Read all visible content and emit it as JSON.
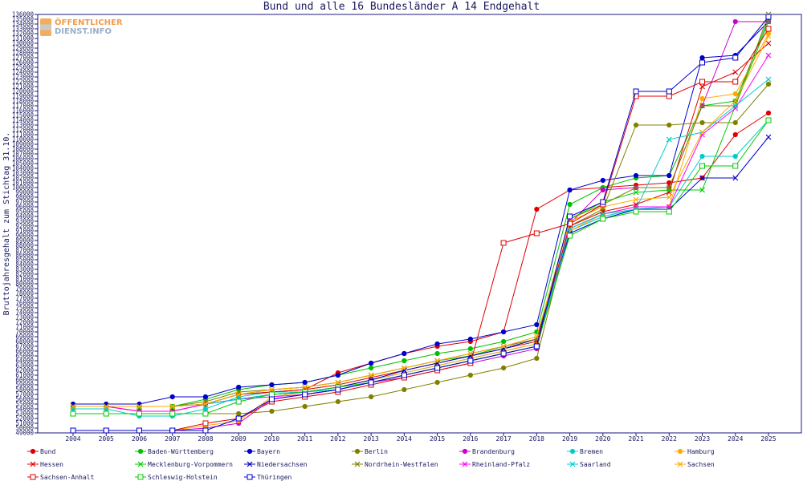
{
  "chart_data": {
    "type": "line",
    "title": "Bund und alle 16 Bundesländer A 14 Endgehalt",
    "ylabel": "Bruttojahresgehalt zum Stichtag 31.10.",
    "xlabel": "",
    "x": [
      2004,
      2005,
      2006,
      2007,
      2008,
      2009,
      2010,
      2011,
      2012,
      2013,
      2014,
      2015,
      2016,
      2017,
      2018,
      2019,
      2020,
      2021,
      2022,
      2023,
      2024,
      2025
    ],
    "ylim": [
      49000,
      136000
    ],
    "ytick_step": 1000,
    "grid": false,
    "legend_position": "bottom",
    "series": [
      {
        "name": "Bund",
        "color": "#e00000",
        "marker": "circle",
        "values": [
          54500,
          54500,
          53500,
          53500,
          55000,
          57000,
          57500,
          58000,
          61500,
          63500,
          65500,
          67000,
          68000,
          70000,
          95500,
          99500,
          100000,
          100500,
          101000,
          102000,
          111000,
          115500
        ]
      },
      {
        "name": "Baden-Württemberg",
        "color": "#00c000",
        "marker": "circle",
        "values": [
          54500,
          54500,
          54500,
          54500,
          56000,
          58000,
          59000,
          59500,
          61000,
          62500,
          64000,
          65500,
          66500,
          68000,
          70000,
          96500,
          100000,
          102000,
          102500,
          117000,
          118000,
          135000
        ]
      },
      {
        "name": "Bayern",
        "color": "#0000cc",
        "marker": "circle",
        "values": [
          55000,
          55000,
          55000,
          56500,
          56500,
          58500,
          59000,
          59500,
          61000,
          63500,
          65500,
          67500,
          68500,
          70000,
          71500,
          99500,
          101500,
          102500,
          102500,
          127000,
          127500,
          134500
        ]
      },
      {
        "name": "Berlin",
        "color": "#808000",
        "marker": "circle",
        "values": [
          53000,
          53000,
          53000,
          53000,
          53000,
          53000,
          53500,
          54500,
          55500,
          56500,
          58000,
          59500,
          61000,
          62500,
          64500,
          92000,
          95500,
          113000,
          113000,
          113500,
          113500,
          121500
        ]
      },
      {
        "name": "Brandenburg",
        "color": "#cc00cc",
        "marker": "circle",
        "values": [
          49500,
          49500,
          49500,
          49500,
          50000,
          51000,
          56000,
          57000,
          58000,
          59500,
          60500,
          62000,
          63500,
          65000,
          66500,
          92500,
          99500,
          100000,
          100000,
          117000,
          134500,
          134500
        ]
      },
      {
        "name": "Bremen",
        "color": "#00cccc",
        "marker": "circle",
        "values": [
          54000,
          54000,
          52500,
          52500,
          54000,
          56500,
          57500,
          57500,
          58500,
          60000,
          61500,
          63000,
          64500,
          66000,
          67500,
          91000,
          94000,
          95500,
          96000,
          106500,
          106500,
          114000
        ]
      },
      {
        "name": "Hamburg",
        "color": "#ffaa00",
        "marker": "circle",
        "values": [
          49500,
          49500,
          49500,
          49500,
          50500,
          51500,
          56500,
          57500,
          58500,
          60000,
          61500,
          63000,
          64500,
          66000,
          67500,
          91000,
          94500,
          96000,
          96000,
          118500,
          119500,
          132000
        ]
      },
      {
        "name": "Hessen",
        "color": "#e00000",
        "marker": "x",
        "values": [
          54500,
          54500,
          53500,
          53500,
          55000,
          57000,
          57500,
          58000,
          59000,
          60500,
          62000,
          63500,
          65000,
          66500,
          68000,
          92000,
          95000,
          96500,
          99000,
          121000,
          124000,
          130000
        ]
      },
      {
        "name": "Mecklenburg-Vorpommern",
        "color": "#00cc00",
        "marker": "x",
        "values": [
          54500,
          54500,
          54500,
          54500,
          55000,
          57000,
          58000,
          58500,
          59500,
          61000,
          62500,
          64000,
          65000,
          67000,
          68500,
          93500,
          97000,
          99000,
          99500,
          99500,
          117000,
          134500
        ]
      },
      {
        "name": "Niedersachsen",
        "color": "#0000cc",
        "marker": "x",
        "values": [
          54500,
          54500,
          54500,
          54500,
          55000,
          56000,
          57000,
          57500,
          58500,
          60000,
          62000,
          63500,
          65000,
          66500,
          68500,
          90500,
          93500,
          95500,
          95500,
          102000,
          102000,
          110500
        ]
      },
      {
        "name": "Nordrhein-Westfalen",
        "color": "#808000",
        "marker": "x",
        "values": [
          54500,
          54500,
          54500,
          54500,
          55500,
          57500,
          58000,
          58500,
          59500,
          61000,
          62500,
          64000,
          65500,
          67000,
          68500,
          93500,
          96500,
          100000,
          100000,
          117000,
          117000,
          136000
        ]
      },
      {
        "name": "Rheinland-Pfalz",
        "color": "#ff00ff",
        "marker": "x",
        "values": [
          54500,
          54500,
          53500,
          53500,
          55000,
          56000,
          56500,
          57000,
          58000,
          59500,
          61000,
          62500,
          64000,
          65500,
          67000,
          91500,
          94500,
          96000,
          96000,
          111000,
          116500,
          127500
        ]
      },
      {
        "name": "Saarland",
        "color": "#00cccc",
        "marker": "x",
        "values": [
          54500,
          54500,
          54500,
          54500,
          55000,
          56000,
          57000,
          57500,
          58000,
          59500,
          61000,
          62500,
          64000,
          65500,
          67000,
          91500,
          94500,
          95500,
          110000,
          111500,
          117000,
          122500
        ]
      },
      {
        "name": "Sachsen",
        "color": "#ffaa00",
        "marker": "x",
        "values": [
          54500,
          54500,
          54500,
          54500,
          55000,
          57000,
          58000,
          58500,
          59500,
          61000,
          62500,
          64000,
          65500,
          67000,
          69000,
          93000,
          96000,
          97500,
          98000,
          111500,
          118000,
          131500
        ]
      },
      {
        "name": "Sachsen-Anhalt",
        "color": "#e00000",
        "marker": "square",
        "values": [
          49500,
          49500,
          49500,
          49500,
          51000,
          52000,
          55500,
          56500,
          57500,
          59000,
          60500,
          62000,
          63500,
          88500,
          90500,
          92500,
          96500,
          119000,
          119000,
          122000,
          122000,
          133000
        ]
      },
      {
        "name": "Schleswig-Holstein",
        "color": "#00cc00",
        "marker": "square",
        "values": [
          53000,
          53000,
          53000,
          53000,
          53000,
          55500,
          57000,
          57500,
          58500,
          59500,
          61000,
          62500,
          64000,
          65500,
          67000,
          90000,
          93500,
          95000,
          95000,
          104500,
          104500,
          114000
        ]
      },
      {
        "name": "Thüringen",
        "color": "#0000cc",
        "marker": "square",
        "values": [
          49500,
          49500,
          49500,
          49500,
          49500,
          52000,
          56000,
          57000,
          58000,
          59500,
          61000,
          62500,
          64000,
          65500,
          67000,
          94000,
          97000,
          120000,
          120000,
          126000,
          127000,
          135500
        ]
      }
    ]
  },
  "logo": {
    "line1": "ÖFFENTLICHER",
    "line2": "DIENST.INFO"
  }
}
